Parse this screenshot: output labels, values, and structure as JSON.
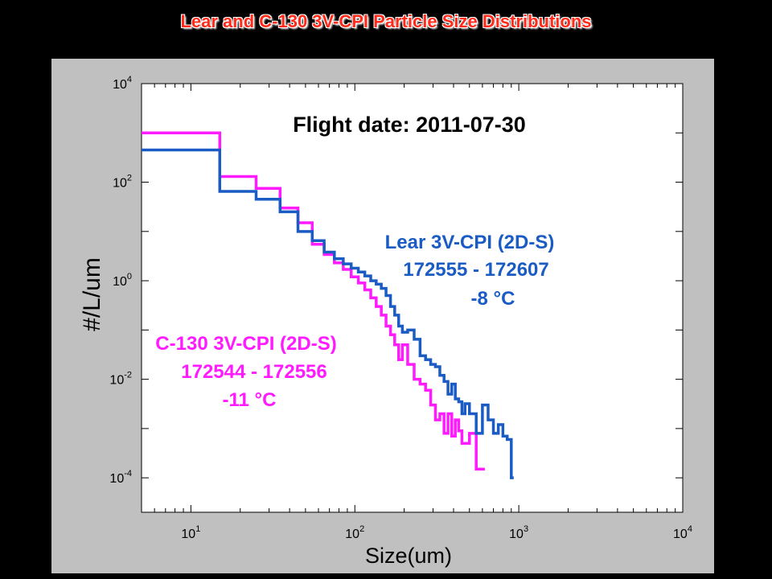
{
  "slide_title": "Lear and C-130 3V-CPI Particle Size Distributions",
  "colors": {
    "lear": "#1a5bc4",
    "c130": "#ff1aff",
    "title": "#ff2a1a",
    "panel": "#c0c0c0"
  },
  "chart_data": {
    "type": "line",
    "step": true,
    "title": "Flight date: 2011-07-30",
    "xlabel": "Size(um)",
    "ylabel": "#/L/um",
    "xscale": "log",
    "yscale": "log",
    "xlim": [
      5,
      10000
    ],
    "ylim": [
      2e-05,
      10000
    ],
    "xtick_labels": [
      {
        "base": "10",
        "exp": "1"
      },
      {
        "base": "10",
        "exp": "2"
      },
      {
        "base": "10",
        "exp": "3"
      },
      {
        "base": "10",
        "exp": "4"
      }
    ],
    "ytick_labels": [
      {
        "base": "10",
        "exp": "-4"
      },
      {
        "base": "10",
        "exp": "-2"
      },
      {
        "base": "10",
        "exp": "0"
      },
      {
        "base": "10",
        "exp": "2"
      },
      {
        "base": "10",
        "exp": "4"
      }
    ],
    "series": [
      {
        "name": "Lear 3V-CPI (2D-S)",
        "annotation": [
          "Lear 3V-CPI (2D-S)",
          "172555 - 172607",
          "-8 °C"
        ],
        "x": [
          5,
          15,
          25,
          35,
          45,
          55,
          65,
          75,
          85,
          95,
          105,
          115,
          125,
          135,
          145,
          155,
          165,
          175,
          185,
          195,
          210,
          230,
          250,
          270,
          290,
          310,
          330,
          350,
          370,
          390,
          410,
          430,
          450,
          470,
          500,
          550,
          600,
          650,
          700,
          750,
          800,
          850,
          900
        ],
        "y": [
          450,
          65,
          45,
          25,
          10,
          6.5,
          3.8,
          2.8,
          2.2,
          1.8,
          1.5,
          1.25,
          1.0,
          0.85,
          0.7,
          0.5,
          0.3,
          0.2,
          0.12,
          0.09,
          0.1,
          0.065,
          0.03,
          0.025,
          0.02,
          0.018,
          0.012,
          0.009,
          0.005,
          0.008,
          0.004,
          0.0035,
          0.002,
          0.0032,
          0.002,
          0.0008,
          0.003,
          0.0015,
          0.0008,
          0.0012,
          0.0007,
          0.0006,
          0.0001
        ]
      },
      {
        "name": "C-130 3V-CPI (2D-S)",
        "annotation": [
          "C-130 3V-CPI (2D-S)",
          "172544 - 172556",
          "-11 °C"
        ],
        "x": [
          5,
          15,
          25,
          35,
          45,
          55,
          65,
          75,
          85,
          95,
          105,
          115,
          125,
          135,
          145,
          155,
          165,
          175,
          185,
          195,
          210,
          230,
          250,
          270,
          290,
          310,
          330,
          350,
          370,
          390,
          410,
          430,
          450,
          470,
          500,
          550,
          600
        ],
        "y": [
          1000,
          130,
          75,
          30,
          15,
          5.5,
          3.4,
          2.3,
          1.7,
          1.2,
          0.9,
          0.65,
          0.45,
          0.3,
          0.2,
          0.12,
          0.08,
          0.05,
          0.025,
          0.05,
          0.02,
          0.01,
          0.008,
          0.006,
          0.003,
          0.0015,
          0.002,
          0.0008,
          0.002,
          0.0007,
          0.0015,
          0.0009,
          0.0005,
          0.0005,
          0.0008,
          0.00015,
          0.00015
        ]
      }
    ]
  }
}
